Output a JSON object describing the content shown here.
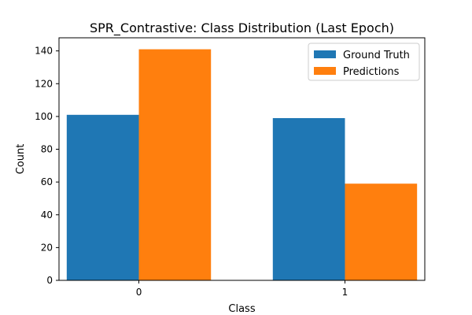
{
  "chart_data": {
    "type": "bar",
    "title": "SPR_Contrastive: Class Distribution (Last Epoch)",
    "xlabel": "Class",
    "ylabel": "Count",
    "categories": [
      "0",
      "1"
    ],
    "series": [
      {
        "name": "Ground Truth",
        "values": [
          101,
          99
        ],
        "color": "#1f77b4"
      },
      {
        "name": "Predictions",
        "values": [
          141,
          59
        ],
        "color": "#ff7f0e"
      }
    ],
    "ylim": [
      0,
      148
    ],
    "yticks": [
      0,
      20,
      40,
      60,
      80,
      100,
      120,
      140
    ],
    "grid": false,
    "legend_position": "top-right"
  }
}
